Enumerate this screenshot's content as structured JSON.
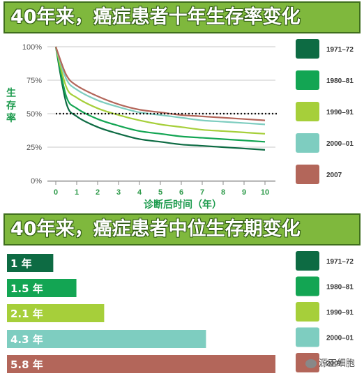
{
  "chart_data": [
    {
      "type": "line",
      "title": "40年来，癌症患者十年生存率变化",
      "xlabel": "诊断后时间（年）",
      "ylabel": "生存率",
      "x": [
        0,
        0.5,
        1,
        2,
        3,
        4,
        5,
        6,
        7,
        8,
        9,
        10
      ],
      "xticks": [
        "0",
        "1",
        "2",
        "3",
        "4",
        "5",
        "6",
        "7",
        "8",
        "9",
        "10"
      ],
      "yticks": [
        "0%",
        "25%",
        "50%",
        "75%",
        "100%"
      ],
      "ylim": [
        0,
        100
      ],
      "xlim": [
        0,
        10
      ],
      "reference_line": 50,
      "grid": true,
      "legend_position": "right",
      "series": [
        {
          "name": "1971–72",
          "color": "#0d6b43",
          "values": [
            100,
            58,
            48,
            40,
            35,
            31,
            29,
            27,
            26,
            25,
            24,
            23
          ]
        },
        {
          "name": "1980–81",
          "color": "#13a553",
          "values": [
            100,
            63,
            54,
            46,
            41,
            37,
            35,
            33,
            32,
            31,
            30,
            29
          ]
        },
        {
          "name": "1990–91",
          "color": "#a6cf3a",
          "values": [
            100,
            70,
            62,
            54,
            49,
            45,
            42,
            40,
            38,
            37,
            36,
            35
          ]
        },
        {
          "name": "2000–01",
          "color": "#7ecdc0",
          "values": [
            100,
            76,
            68,
            60,
            55,
            51,
            49,
            47,
            45,
            44,
            43,
            42
          ]
        },
        {
          "name": "2007",
          "color": "#b3665a",
          "values": [
            100,
            79,
            71,
            63,
            57,
            53,
            51,
            49,
            48,
            47,
            46,
            45
          ]
        }
      ]
    },
    {
      "type": "bar",
      "orientation": "horizontal",
      "title": "40年来，癌症患者中位生存期变化",
      "categories": [
        "1971–72",
        "1980–81",
        "1990–91",
        "2000–01",
        "2007"
      ],
      "values": [
        1,
        1.5,
        2.1,
        4.3,
        5.8
      ],
      "labels": [
        "1 年",
        "1.5 年",
        "2.1 年",
        "4.3 年",
        "5.8 年"
      ],
      "colors": [
        "#0d6b43",
        "#13a553",
        "#a6cf3a",
        "#7ecdc0",
        "#b3665a"
      ],
      "xlim": [
        0,
        5.8
      ],
      "legend_position": "right"
    }
  ],
  "watermark": {
    "text": "源正细胞",
    "icon": "wechat-icon"
  }
}
